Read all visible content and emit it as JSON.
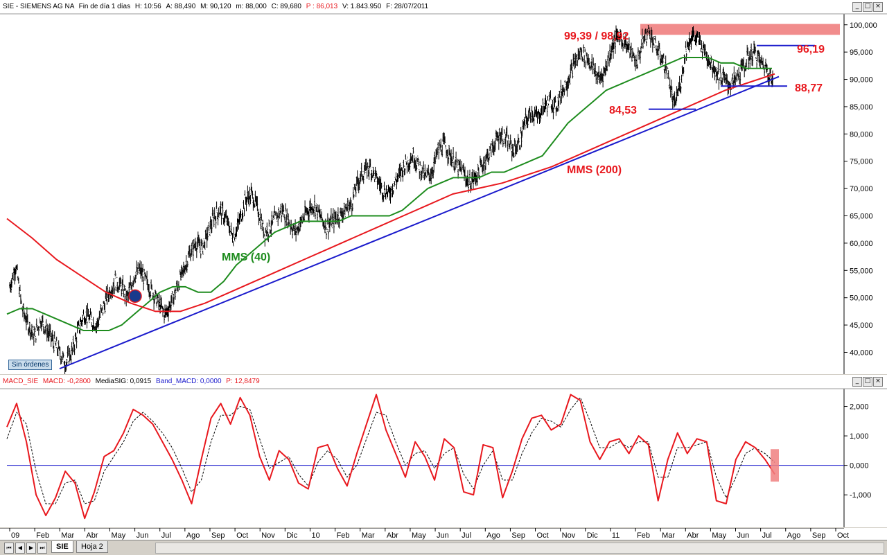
{
  "header": {
    "symbol": "SIE - SIEMENS AG NA",
    "frequency": "Fin de día 1 días",
    "time": "H: 10:56",
    "open": "A: 88,490",
    "high": "M: 90,120",
    "low": "m: 88,000",
    "close": "C: 89,680",
    "p": "P : 86,013",
    "volume": "V: 1.843.950",
    "date": "F: 28/07/2011"
  },
  "macd_header": {
    "name": "MACD_SIE",
    "macd": "MACD: -0,2800",
    "signal": "MediaSIG: 0,0915",
    "band": "Band_MACD: 0,0000",
    "p": "P: 12,8479"
  },
  "window_buttons": [
    "_",
    "□",
    "×"
  ],
  "sin_ordenes": "Sin órdenes",
  "tabs": {
    "active": "SIE",
    "other": "Hoja 2"
  },
  "nav_buttons": [
    "⏮",
    "◀",
    "▶",
    "⏭"
  ],
  "colors": {
    "price": "#000000",
    "mms40": "#1e8c1e",
    "mms200": "#e8181e",
    "trendline": "#1a1acc",
    "resistance_band": "#f08080",
    "annotation": "#e8181e",
    "macd": "#e8181e",
    "signal": "#000000",
    "zero_line": "#1a1acc"
  },
  "chart_data": [
    {
      "type": "line",
      "title": "",
      "x_labels": [
        "09",
        "Feb",
        "Mar",
        "Abr",
        "May",
        "Jun",
        "Jul",
        "Ago",
        "Sep",
        "Oct",
        "Nov",
        "Dic",
        "10",
        "Feb",
        "Mar",
        "Abr",
        "May",
        "Jun",
        "Jul",
        "Ago",
        "Sep",
        "Oct",
        "Nov",
        "Dic",
        "11",
        "Feb",
        "Mar",
        "Abr",
        "May",
        "Jun",
        "Jul",
        "Ago",
        "Sep",
        "Oct"
      ],
      "y_ticks": [
        "40,000",
        "45,000",
        "50,000",
        "55,000",
        "60,000",
        "65,000",
        "70,000",
        "75,000",
        "80,000",
        "85,000",
        "90,000",
        "95,000",
        "100,000"
      ],
      "ylim": [
        36,
        102
      ],
      "series": [
        {
          "name": "",
          "kind": "ohlc",
          "values": [
            52,
            56,
            48,
            45,
            43,
            46,
            44,
            42,
            40,
            38,
            40,
            44,
            47,
            46,
            45,
            48,
            51,
            53,
            52,
            50,
            54,
            55,
            53,
            51,
            49,
            47,
            49,
            52,
            55,
            58,
            60,
            59,
            62,
            65,
            66,
            64,
            61,
            64,
            68,
            69,
            66,
            62,
            63,
            65,
            66,
            64,
            62,
            64,
            66,
            67,
            65,
            63,
            64,
            65,
            66,
            67,
            71,
            73,
            74,
            72,
            70,
            69,
            71,
            73,
            75,
            76,
            74,
            72,
            73,
            77,
            78,
            76,
            74,
            73,
            71,
            72,
            74,
            76,
            78,
            80,
            79,
            77,
            78,
            82,
            84,
            83,
            85,
            86,
            85,
            88,
            90,
            93,
            95,
            94,
            92,
            90,
            92,
            96,
            98,
            97,
            95,
            93,
            97,
            99,
            96,
            94,
            91,
            85,
            89,
            96,
            98,
            97,
            95,
            93,
            91,
            90,
            89,
            90,
            92,
            94,
            95,
            93,
            92,
            89
          ]
        },
        {
          "name": "MMS (40)",
          "values": [
            47,
            48,
            48,
            47,
            46,
            45,
            44,
            44,
            44,
            45,
            47,
            49,
            51,
            52,
            52,
            51,
            51,
            53,
            56,
            58,
            60,
            62,
            63,
            64,
            64,
            64,
            64,
            65,
            65,
            65,
            65,
            66,
            68,
            70,
            71,
            72,
            72,
            72,
            73,
            73,
            74,
            75,
            76,
            79,
            82,
            84,
            86,
            88,
            89,
            90,
            91,
            92,
            93,
            94,
            94,
            94,
            93,
            93,
            92,
            92,
            92
          ]
        },
        {
          "name": "MMS (200)",
          "values": [
            64.5,
            61,
            57,
            54,
            51,
            49,
            47.5,
            47.5,
            49,
            51,
            53,
            55,
            57,
            59,
            61,
            63,
            65,
            67,
            69,
            70,
            71,
            72.5,
            74,
            76,
            78,
            80,
            82,
            84,
            86,
            88,
            89.5,
            91
          ]
        },
        {
          "name": "",
          "kind": "trendline",
          "values": [
            37,
            90.5
          ]
        }
      ],
      "annotations": [
        "99,39 / 98,92",
        "96,19",
        "88,77",
        "84,53",
        "MMS (40)",
        "MMS (200)"
      ]
    },
    {
      "type": "line",
      "title": "",
      "y_ticks": [
        "-1,000",
        "0,000",
        "1,000",
        "2,000"
      ],
      "ylim": [
        -2.1,
        2.6
      ],
      "series": [
        {
          "name": "MACD",
          "values": [
            1.3,
            2.1,
            0.8,
            -1.0,
            -1.7,
            -1.1,
            -0.2,
            -0.6,
            -1.8,
            -0.9,
            0.3,
            0.5,
            1.1,
            1.9,
            1.7,
            1.4,
            0.8,
            0.2,
            -0.5,
            -1.3,
            0.2,
            1.6,
            2.1,
            1.4,
            2.3,
            1.7,
            0.3,
            -0.5,
            0.5,
            0.2,
            -0.6,
            -0.8,
            0.6,
            0.7,
            -0.1,
            -0.7,
            0.4,
            1.4,
            2.4,
            1.2,
            0.4,
            -0.4,
            0.8,
            0.3,
            -0.5,
            0.9,
            0.6,
            -0.9,
            -1.0,
            0.7,
            0.6,
            -1.1,
            -0.2,
            0.9,
            1.6,
            1.7,
            1.2,
            1.4,
            2.4,
            2.2,
            0.8,
            0.2,
            0.8,
            0.9,
            0.4,
            1.0,
            0.7,
            -1.2,
            0.2,
            1.1,
            0.4,
            0.9,
            0.8,
            -1.2,
            -1.3,
            0.2,
            0.8,
            0.6,
            0.2,
            -0.3
          ]
        },
        {
          "name": "MediaSIG",
          "values": [
            0.9,
            1.8,
            1.4,
            -0.2,
            -1.3,
            -1.3,
            -0.6,
            -0.5,
            -1.3,
            -1.2,
            -0.2,
            0.3,
            0.8,
            1.5,
            1.8,
            1.5,
            1.1,
            0.6,
            -0.1,
            -0.9,
            -0.5,
            0.8,
            1.7,
            1.7,
            2.0,
            1.9,
            0.9,
            -0.1,
            0.1,
            0.3,
            -0.3,
            -0.7,
            0.1,
            0.5,
            0.2,
            -0.4,
            0.0,
            0.9,
            1.8,
            1.7,
            0.8,
            0.0,
            0.4,
            0.5,
            -0.1,
            0.4,
            0.6,
            -0.3,
            -0.8,
            0.0,
            0.5,
            -0.5,
            -0.5,
            0.4,
            1.1,
            1.6,
            1.5,
            1.3,
            1.9,
            2.3,
            1.5,
            0.6,
            0.6,
            0.8,
            0.6,
            0.8,
            0.8,
            -0.4,
            -0.4,
            0.6,
            0.6,
            0.7,
            0.8,
            -0.4,
            -1.1,
            -0.4,
            0.4,
            0.6,
            0.4,
            0.1
          ]
        },
        {
          "name": "",
          "kind": "zero_line",
          "values": [
            0.0
          ]
        }
      ]
    }
  ]
}
